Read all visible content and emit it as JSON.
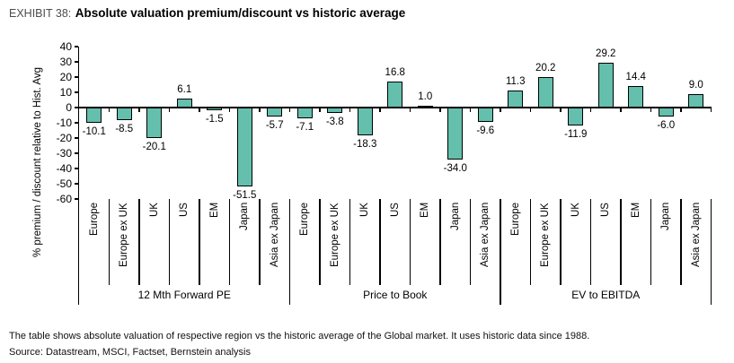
{
  "title": {
    "exhibit": "EXHIBIT 38:",
    "text": "Absolute valuation premium/discount vs historic average"
  },
  "footnotes": [
    "The table shows absolute valuation of respective region vs the historic average of the Global market. It uses historic data since 1988.",
    "Source: Datastream, MSCI, Factset, Bernstein analysis"
  ],
  "chart_data": {
    "type": "bar",
    "title": "Absolute valuation premium/discount vs historic average",
    "ylabel": "% premium / discount relative to Hist. Avg",
    "xlabel": "",
    "ylim": [
      -60,
      40
    ],
    "ytick_step": 10,
    "yticks": [
      40,
      30,
      20,
      10,
      0,
      -10,
      -20,
      -30,
      -40,
      -50,
      -60
    ],
    "grid": false,
    "legend": false,
    "bar_color": "#64bfad",
    "bar_border_color": "#000000",
    "categories": [
      "Europe",
      "Europe ex UK",
      "UK",
      "US",
      "EM",
      "Japan",
      "Asia ex Japan"
    ],
    "groups": [
      {
        "label": "12 Mth Forward PE",
        "values": [
          -10.1,
          -8.5,
          -20.1,
          6.1,
          -1.5,
          -51.5,
          -5.7
        ]
      },
      {
        "label": "Price to Book",
        "values": [
          -7.1,
          -3.8,
          -18.3,
          16.8,
          1.0,
          -34.0,
          -9.6
        ]
      },
      {
        "label": "EV to EBITDA",
        "values": [
          11.3,
          20.2,
          -11.9,
          29.2,
          14.4,
          -6.0,
          9.0
        ]
      }
    ]
  }
}
